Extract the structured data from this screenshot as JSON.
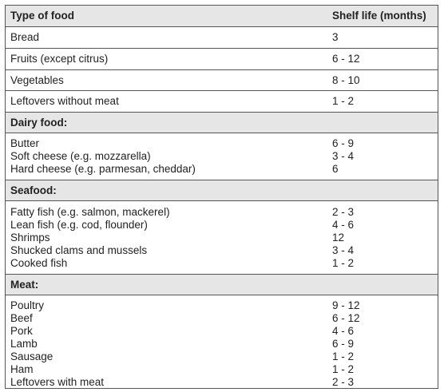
{
  "header": {
    "food_label": "Type of food",
    "shelf_label": "Shelf life (months)"
  },
  "single_rows": [
    {
      "food": "Bread",
      "shelf": "3"
    },
    {
      "food": "Fruits (except citrus)",
      "shelf": "6 - 12"
    },
    {
      "food": "Vegetables",
      "shelf": "8 - 10"
    },
    {
      "food": "Leftovers without meat",
      "shelf": "1 - 2"
    }
  ],
  "sections": [
    {
      "title": "Dairy food:",
      "items": [
        {
          "food": "Butter",
          "shelf": "6 - 9"
        },
        {
          "food": "Soft cheese (e.g. mozzarella)",
          "shelf": "3 - 4"
        },
        {
          "food": "Hard cheese (e.g. parmesan, cheddar)",
          "shelf": "6"
        }
      ]
    },
    {
      "title": "Seafood:",
      "items": [
        {
          "food": "Fatty fish (e.g. salmon, mackerel)",
          "shelf": "2 - 3"
        },
        {
          "food": "Lean fish (e.g. cod, flounder)",
          "shelf": "4 - 6"
        },
        {
          "food": "Shrimps",
          "shelf": "12"
        },
        {
          "food": "Shucked clams and mussels",
          "shelf": "3 - 4"
        },
        {
          "food": "Cooked fish",
          "shelf": "1 - 2"
        }
      ]
    },
    {
      "title": "Meat:",
      "items": [
        {
          "food": "Poultry",
          "shelf": "9 - 12"
        },
        {
          "food": "Beef",
          "shelf": "6 - 12"
        },
        {
          "food": "Pork",
          "shelf": "4 - 6"
        },
        {
          "food": "Lamb",
          "shelf": "6 - 9"
        },
        {
          "food": "Sausage",
          "shelf": "1 - 2"
        },
        {
          "food": "Ham",
          "shelf": "1 - 2"
        },
        {
          "food": "Leftovers with meat",
          "shelf": "2 - 3"
        }
      ]
    }
  ]
}
